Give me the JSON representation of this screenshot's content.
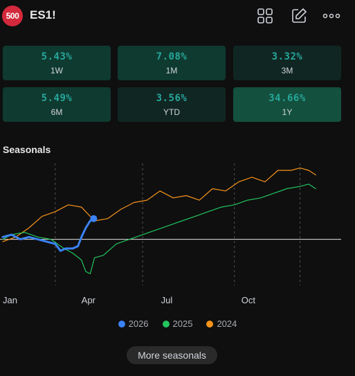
{
  "header": {
    "logo_text": "500",
    "symbol": "ES1!",
    "icons": [
      "grid-icon",
      "edit-icon",
      "more-icon"
    ]
  },
  "performance": [
    {
      "value": "5.43%",
      "period": "1W",
      "bg": "#0f3a30"
    },
    {
      "value": "7.08%",
      "period": "1M",
      "bg": "#0f3a30"
    },
    {
      "value": "3.32%",
      "period": "3M",
      "bg": "#102622"
    },
    {
      "value": "5.49%",
      "period": "6M",
      "bg": "#0f3a30"
    },
    {
      "value": "3.56%",
      "period": "YTD",
      "bg": "#102622"
    },
    {
      "value": "34.66%",
      "period": "1Y",
      "bg": "#14503e"
    }
  ],
  "seasonals": {
    "title": "Seasonals",
    "more_label": "More seasonals"
  },
  "chart_data": {
    "type": "line",
    "x_unit": "day of year",
    "xlim": [
      0,
      365
    ],
    "ylim": [
      -20,
      33
    ],
    "baseline": 0,
    "x_ticks": [
      {
        "label": "Jan",
        "x": 0
      },
      {
        "label": "Apr",
        "x": 90
      },
      {
        "label": "Jul",
        "x": 181
      },
      {
        "label": "Oct",
        "x": 273
      }
    ],
    "series": [
      {
        "name": "2024",
        "color": "#f7931a",
        "x": [
          0,
          15,
          30,
          45,
          60,
          75,
          90,
          105,
          120,
          135,
          150,
          165,
          180,
          195,
          210,
          225,
          240,
          255,
          270,
          285,
          300,
          315,
          330,
          340,
          350,
          358
        ],
        "y": [
          -1,
          1,
          5,
          10,
          12,
          15,
          14,
          8,
          9,
          13,
          16,
          17,
          21,
          18,
          19,
          17,
          22,
          21,
          25,
          27,
          25,
          30,
          30,
          31,
          30,
          28
        ]
      },
      {
        "name": "2025",
        "color": "#22c55e",
        "x": [
          0,
          10,
          25,
          40,
          55,
          70,
          80,
          90,
          95,
          100,
          105,
          115,
          130,
          145,
          160,
          175,
          190,
          205,
          220,
          235,
          250,
          265,
          280,
          295,
          310,
          325,
          340,
          350,
          358
        ],
        "y": [
          0,
          2,
          3,
          1,
          0,
          -4,
          -6,
          -9,
          -14,
          -15,
          -8,
          -7,
          -2,
          0,
          2,
          4,
          6,
          8,
          10,
          12,
          14,
          15,
          17,
          18,
          20,
          22,
          23,
          24,
          22
        ]
      },
      {
        "name": "2026",
        "color": "#3b82f6",
        "x": [
          0,
          10,
          20,
          30,
          40,
          50,
          60,
          66,
          72,
          80,
          86,
          90,
          95,
          100,
          104
        ],
        "y": [
          1,
          2,
          0,
          1,
          0,
          -1,
          -2,
          -5,
          -4,
          -4,
          -3,
          1,
          5,
          8,
          9
        ]
      }
    ]
  }
}
